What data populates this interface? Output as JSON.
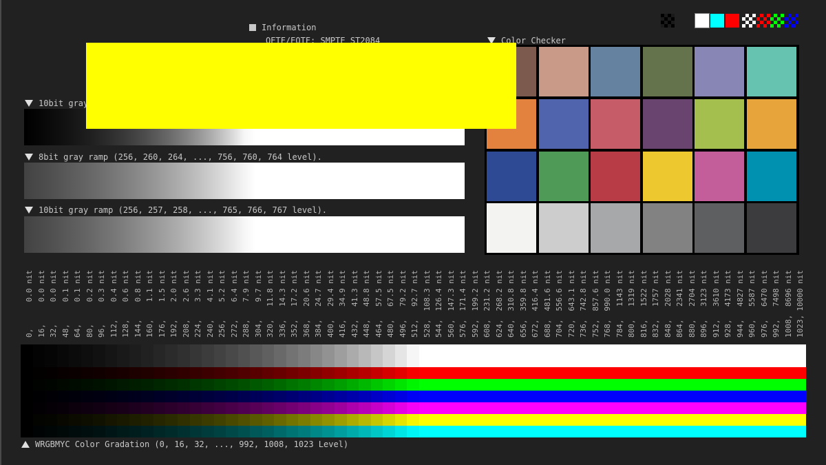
{
  "info": {
    "title": "Information",
    "oetf": "OETF/EOTF: SMPTE ST2084"
  },
  "ramps": [
    {
      "label": "10bit gray",
      "start": 0,
      "end": 1023
    },
    {
      "label": "8bit gray ramp (256, 260, 264, ..., 756, 760, 764 level).",
      "start": 256,
      "end": 764
    },
    {
      "label": "10bit gray ramp (256, 257, 258, ..., 765, 766, 767 level).",
      "start": 256,
      "end": 767
    }
  ],
  "color_checker": {
    "title": "Color Checker",
    "patches": [
      "#7c5a4e",
      "#c99a88",
      "#6582a0",
      "#64734c",
      "#8886b5",
      "#66c3b0",
      "#e2823e",
      "#4f64ad",
      "#c65c68",
      "#68446f",
      "#a4bf4e",
      "#e6a43a",
      "#2f4a94",
      "#4f9a56",
      "#b73c46",
      "#edc82f",
      "#c35e9a",
      "#0090b0",
      "#f3f4f2",
      "#cccdcc",
      "#a7a8a9",
      "#828282",
      "#5e5f60",
      "#3c3c3e"
    ]
  },
  "top_icons": {
    "solid": [
      "#ffffff",
      "#00ffff",
      "#ff0000"
    ],
    "patterns": [
      "#ffffff",
      "#ff0000",
      "#00ff00",
      "#0000ff"
    ]
  },
  "overlay_color": "#ffff00",
  "levels": {
    "codes": [
      "0",
      "16",
      "32",
      "48",
      "64",
      "80",
      "96",
      "112",
      "128",
      "144",
      "160",
      "176",
      "192",
      "208",
      "224",
      "240",
      "256",
      "272",
      "288",
      "304",
      "320",
      "336",
      "352",
      "368",
      "384",
      "400",
      "416",
      "432",
      "448",
      "464",
      "480",
      "496",
      "512",
      "528",
      "544",
      "560",
      "576",
      "592",
      "608",
      "624",
      "640",
      "656",
      "672",
      "688",
      "704",
      "720",
      "736",
      "752",
      "768",
      "784",
      "800",
      "816",
      "832",
      "848",
      "864",
      "880",
      "896",
      "912",
      "928",
      "944",
      "960",
      "976",
      "992",
      "1008",
      "1023"
    ],
    "nits": [
      "0.0",
      "0.0",
      "0.0",
      "0.1",
      "0.1",
      "0.2",
      "0.3",
      "0.4",
      "0.6",
      "0.8",
      "1.1",
      "1.5",
      "2.0",
      "2.6",
      "3.3",
      "4.1",
      "5.2",
      "6.4",
      "7.9",
      "9.7",
      "11.8",
      "14.3",
      "17.2",
      "20.6",
      "24.7",
      "29.4",
      "34.9",
      "41.3",
      "48.8",
      "57.5",
      "67.5",
      "79.2",
      "92.7",
      "108.3",
      "126.4",
      "147.3",
      "171.4",
      "199.2",
      "231.2",
      "268.2",
      "310.8",
      "359.8",
      "416.4",
      "481.6",
      "556.6",
      "643.1",
      "742.8",
      "857.6",
      "990.0",
      "1143",
      "1319",
      "1522",
      "1757",
      "2028",
      "2341",
      "2704",
      "3123",
      "3610",
      "4173",
      "4827",
      "5587",
      "6470",
      "7498",
      "8696",
      "10000"
    ],
    "unit": "nit"
  },
  "gradation": {
    "label": "WRGBMYC Color Gradation (0, 16, 32, ..., 992, 1008, 1023 Level)",
    "rows": [
      {
        "name": "white",
        "rgb": [
          1,
          1,
          1
        ]
      },
      {
        "name": "red",
        "rgb": [
          1,
          0,
          0
        ]
      },
      {
        "name": "green",
        "rgb": [
          0,
          1,
          0
        ]
      },
      {
        "name": "blue",
        "rgb": [
          0,
          0,
          1
        ]
      },
      {
        "name": "magenta",
        "rgb": [
          1,
          0,
          1
        ]
      },
      {
        "name": "yellow",
        "rgb": [
          1,
          1,
          0
        ]
      },
      {
        "name": "cyan",
        "rgb": [
          0,
          1,
          1
        ]
      }
    ]
  }
}
